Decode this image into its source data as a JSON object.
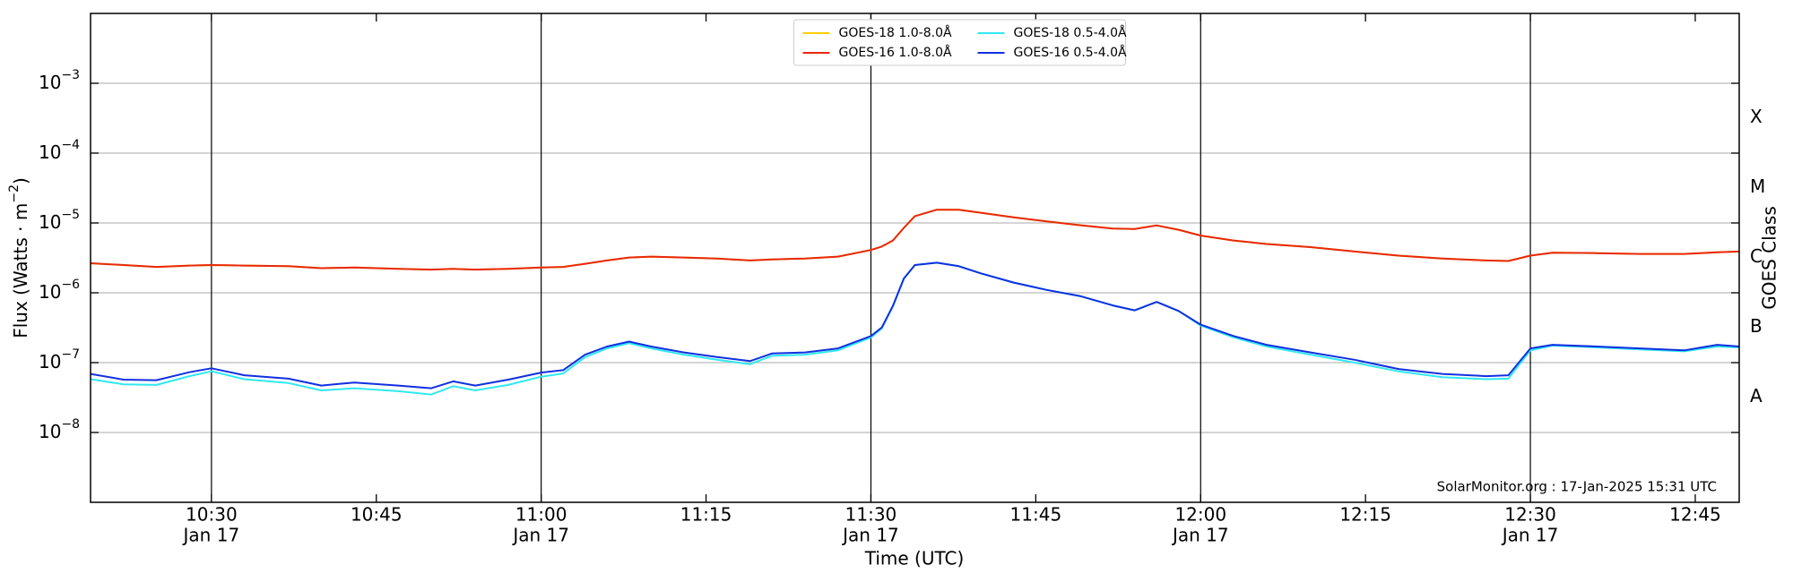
{
  "chart_data": {
    "type": "line",
    "x_label": "Time (UTC)",
    "y_label": [
      "Flux (Watts · m",
      "−2",
      ")"
    ],
    "y2_label": "GOES Class",
    "annotation": "SolarMonitor.org : 17-Jan-2025 15:31 UTC",
    "log_y": true,
    "grid": true,
    "legend": "upper center",
    "xlim": [
      "10:19",
      "12:49"
    ],
    "xticks": [
      {
        "value": "10:30",
        "label": [
          "10:30",
          "Jan 17"
        ]
      },
      "10:45",
      {
        "value": "11:00",
        "label": [
          "11:00",
          "Jan 17"
        ]
      },
      "11:15",
      {
        "value": "11:30",
        "label": [
          "11:30",
          "Jan 17"
        ]
      },
      "11:45",
      {
        "value": "12:00",
        "label": [
          "12:00",
          "Jan 17"
        ]
      },
      "12:15",
      {
        "value": "12:30",
        "label": [
          "12:30",
          "Jan 17"
        ]
      },
      "12:45"
    ],
    "ylim": [
      1e-09,
      0.01
    ],
    "yticks": [
      {
        "value": 1e-08,
        "label": [
          "10",
          "−8"
        ]
      },
      {
        "value": 1e-07,
        "label": [
          "10",
          "−7"
        ]
      },
      {
        "value": 1e-06,
        "label": [
          "10",
          "−6"
        ]
      },
      {
        "value": 1e-05,
        "label": [
          "10",
          "−5"
        ]
      },
      {
        "value": 0.0001,
        "label": [
          "10",
          "−4"
        ]
      },
      {
        "value": 0.001,
        "label": [
          "10",
          "−3"
        ]
      }
    ],
    "y2lim": [
      1e-09,
      0.01
    ],
    "y2ticks": [
      {
        "value": 3.2e-08,
        "label": "A"
      },
      {
        "value": 3.2e-07,
        "label": "B"
      },
      {
        "value": 3.2e-06,
        "label": "C"
      },
      {
        "value": 3.2e-05,
        "label": "M"
      },
      {
        "value": 0.00032,
        "label": "X"
      }
    ],
    "x": [
      "10:19",
      "10:22",
      "10:25",
      "10:28",
      "10:30",
      "10:33",
      "10:37",
      "10:40",
      "10:43",
      "10:47",
      "10:50",
      "10:52",
      "10:54",
      "10:57",
      "11:00",
      "11:02",
      "11:04",
      "11:06",
      "11:08",
      "11:10",
      "11:13",
      "11:16",
      "11:19",
      "11:21",
      "11:24",
      "11:27",
      "11:30",
      "11:31",
      "11:32",
      "11:33",
      "11:34",
      "11:36",
      "11:38",
      "11:40",
      "11:43",
      "11:46",
      "11:49",
      "11:52",
      "11:54",
      "11:56",
      "11:58",
      "12:00",
      "12:03",
      "12:06",
      "12:10",
      "12:14",
      "12:18",
      "12:22",
      "12:26",
      "12:28",
      "12:30",
      "12:32",
      "12:36",
      "12:40",
      "12:44",
      "12:47",
      "12:49"
    ],
    "series": [
      {
        "name": "GOES-18 1.0-8.0Å",
        "color": "#ffd000",
        "values": [
          2.65e-06,
          2.5e-06,
          2.35e-06,
          2.45e-06,
          2.5e-06,
          2.45e-06,
          2.4e-06,
          2.25e-06,
          2.3e-06,
          2.2e-06,
          2.15e-06,
          2.2e-06,
          2.15e-06,
          2.2e-06,
          2.3e-06,
          2.35e-06,
          2.6e-06,
          2.9e-06,
          3.2e-06,
          3.3e-06,
          3.2e-06,
          3.1e-06,
          2.9e-06,
          3e-06,
          3.1e-06,
          3.3e-06,
          4.1e-06,
          4.6e-06,
          5.6e-06,
          8.5e-06,
          1.25e-05,
          1.55e-05,
          1.55e-05,
          1.4e-05,
          1.2e-05,
          1.05e-05,
          9.3e-06,
          8.3e-06,
          8.2e-06,
          9.2e-06,
          8e-06,
          6.6e-06,
          5.6e-06,
          5e-06,
          4.5e-06,
          3.9e-06,
          3.4e-06,
          3.1e-06,
          2.9e-06,
          2.85e-06,
          3.4e-06,
          3.75e-06,
          3.7e-06,
          3.6e-06,
          3.6e-06,
          3.8e-06,
          3.9e-06
        ]
      },
      {
        "name": "GOES-16 1.0-8.0Å",
        "color": "#e8280c",
        "values": [
          2.65e-06,
          2.5e-06,
          2.35e-06,
          2.45e-06,
          2.5e-06,
          2.45e-06,
          2.4e-06,
          2.25e-06,
          2.3e-06,
          2.2e-06,
          2.15e-06,
          2.2e-06,
          2.15e-06,
          2.2e-06,
          2.3e-06,
          2.35e-06,
          2.6e-06,
          2.9e-06,
          3.2e-06,
          3.3e-06,
          3.2e-06,
          3.1e-06,
          2.9e-06,
          3e-06,
          3.1e-06,
          3.3e-06,
          4.1e-06,
          4.6e-06,
          5.6e-06,
          8.5e-06,
          1.25e-05,
          1.55e-05,
          1.55e-05,
          1.4e-05,
          1.2e-05,
          1.05e-05,
          9.3e-06,
          8.3e-06,
          8.2e-06,
          9.2e-06,
          8e-06,
          6.6e-06,
          5.6e-06,
          5e-06,
          4.5e-06,
          3.9e-06,
          3.4e-06,
          3.1e-06,
          2.9e-06,
          2.85e-06,
          3.4e-06,
          3.75e-06,
          3.7e-06,
          3.6e-06,
          3.6e-06,
          3.8e-06,
          3.9e-06
        ]
      },
      {
        "name": "GOES-18 0.5-4.0Å",
        "color": "#30e8f0",
        "values": [
          5.8e-08,
          4.9e-08,
          4.8e-08,
          6.4e-08,
          7.5e-08,
          5.8e-08,
          5.1e-08,
          4e-08,
          4.3e-08,
          3.9e-08,
          3.5e-08,
          4.6e-08,
          4e-08,
          4.8e-08,
          6.3e-08,
          7e-08,
          1.2e-07,
          1.6e-07,
          1.9e-07,
          1.6e-07,
          1.3e-07,
          1.1e-07,
          9.5e-08,
          1.25e-07,
          1.3e-07,
          1.5e-07,
          2.3e-07,
          3.1e-07,
          6.4e-07,
          1.6e-06,
          2.5e-06,
          2.7e-06,
          2.4e-06,
          1.9e-06,
          1.4e-06,
          1.1e-06,
          9e-07,
          6.6e-07,
          5.6e-07,
          7.4e-07,
          5.5e-07,
          3.4e-07,
          2.3e-07,
          1.7e-07,
          1.3e-07,
          1e-07,
          7.5e-08,
          6.2e-08,
          5.8e-08,
          5.9e-08,
          1.5e-07,
          1.75e-07,
          1.65e-07,
          1.55e-07,
          1.45e-07,
          1.7e-07,
          1.65e-07
        ]
      },
      {
        "name": "GOES-16 0.5-4.0Å",
        "color": "#1030e0",
        "values": [
          6.9e-08,
          5.7e-08,
          5.6e-08,
          7.3e-08,
          8.3e-08,
          6.6e-08,
          5.9e-08,
          4.7e-08,
          5.2e-08,
          4.7e-08,
          4.3e-08,
          5.4e-08,
          4.7e-08,
          5.7e-08,
          7.2e-08,
          7.8e-08,
          1.3e-07,
          1.7e-07,
          2e-07,
          1.7e-07,
          1.4e-07,
          1.2e-07,
          1.05e-07,
          1.35e-07,
          1.4e-07,
          1.6e-07,
          2.4e-07,
          3.2e-07,
          6.5e-07,
          1.6e-06,
          2.5e-06,
          2.7e-06,
          2.4e-06,
          1.9e-06,
          1.4e-06,
          1.1e-06,
          9e-07,
          6.6e-07,
          5.6e-07,
          7.4e-07,
          5.5e-07,
          3.5e-07,
          2.4e-07,
          1.8e-07,
          1.4e-07,
          1.1e-07,
          8.1e-08,
          6.9e-08,
          6.4e-08,
          6.6e-08,
          1.6e-07,
          1.8e-07,
          1.7e-07,
          1.6e-07,
          1.5e-07,
          1.8e-07,
          1.7e-07
        ]
      }
    ]
  }
}
